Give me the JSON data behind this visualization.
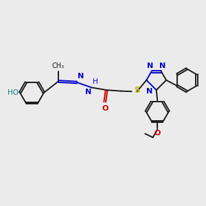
{
  "bg_color": "#ebebeb",
  "bond_color": "#1a1a1a",
  "N_color": "#0000cc",
  "O_color": "#cc0000",
  "S_color": "#bbbb00",
  "HO_color": "#008080",
  "line_width": 1.4,
  "fig_width": 3.0,
  "fig_height": 3.0,
  "dpi": 100,
  "xlim": [
    0,
    10
  ],
  "ylim": [
    0,
    10
  ]
}
